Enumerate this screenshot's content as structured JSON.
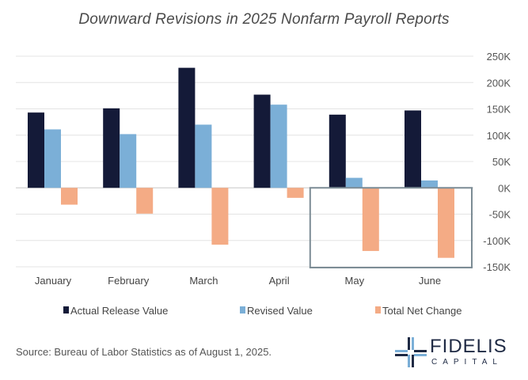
{
  "title": "Downward Revisions in 2025 Nonfarm Payroll Reports",
  "source": "Source: Bureau of Labor Statistics as of August 1, 2025.",
  "logo": {
    "name": "FIDELIS",
    "sub": "CAPITAL"
  },
  "chart_data": {
    "type": "bar",
    "title": "Downward Revisions in 2025 Nonfarm Payroll Reports",
    "categories": [
      "January",
      "February",
      "March",
      "April",
      "May",
      "June"
    ],
    "series": [
      {
        "name": "Actual Release Value",
        "color": "#141a38",
        "values": [
          143,
          151,
          228,
          177,
          139,
          147
        ]
      },
      {
        "name": "Revised Value",
        "color": "#7bafd7",
        "values": [
          111,
          102,
          120,
          158,
          19,
          14
        ]
      },
      {
        "name": "Total Net Change",
        "color": "#f4ab85",
        "values": [
          -32,
          -49,
          -108,
          -19,
          -120,
          -133
        ]
      }
    ],
    "ylim": [
      -150,
      250
    ],
    "yticks": [
      250,
      200,
      150,
      100,
      50,
      0,
      -50,
      -100,
      -150
    ],
    "ytick_labels": [
      "250K",
      "200K",
      "150K",
      "100K",
      "50K",
      "0K",
      "-50K",
      "-100K",
      "-150K"
    ],
    "grid": true,
    "legend": "bottom",
    "highlight_categories": [
      "May",
      "June"
    ]
  }
}
